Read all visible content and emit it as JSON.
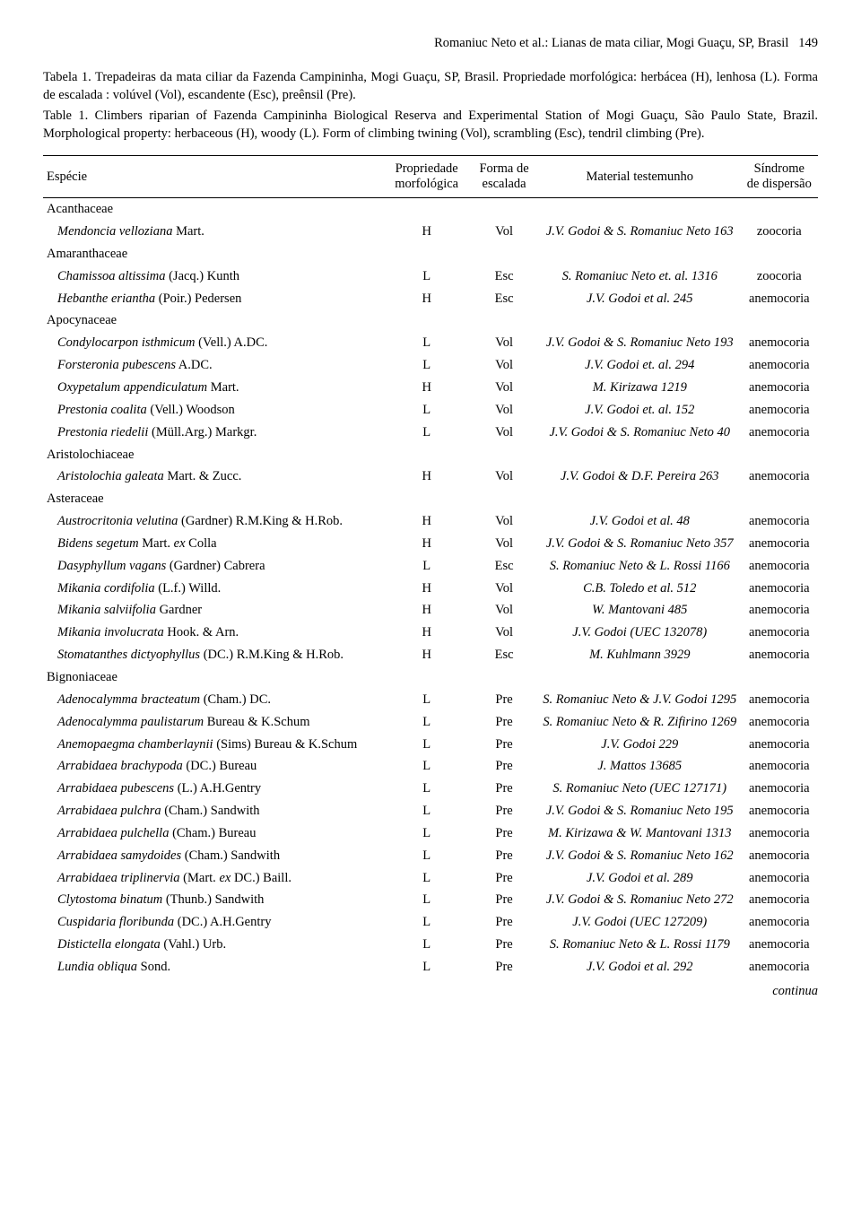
{
  "running_head": "Romaniuc Neto et al.: Lianas de mata ciliar, Mogi Guaçu, SP, Brasil",
  "page_number": "149",
  "caption_pt": "Tabela 1. Trepadeiras da mata ciliar da Fazenda Campininha, Mogi Guaçu, SP, Brasil. Propriedade morfológica: herbácea (H), lenhosa (L). Forma de escalada : volúvel (Vol), escandente (Esc), preênsil (Pre).",
  "caption_en": "Table 1. Climbers riparian of Fazenda Campininha Biological Reserva and Experimental Station of Mogi Guaçu, São Paulo State, Brazil. Morphological property: herbaceous (H), woody (L). Form of climbing twining (Vol), scrambling (Esc), tendril climbing (Pre).",
  "columns": {
    "especie": "Espécie",
    "prop": "Propriedade\nmorfológica",
    "forma": "Forma de\nescalada",
    "material": "Material testemunho",
    "sindrome": "Síndrome\nde dispersão"
  },
  "rows": [
    {
      "type": "family",
      "name": "Acanthaceae"
    },
    {
      "type": "sp",
      "name": "Mendoncia velloziana",
      "auth": " Mart.",
      "pm": "H",
      "fe": "Vol",
      "mt": "J.V. Godoi & S. Romaniuc Neto 163",
      "sd": "zoocoria"
    },
    {
      "type": "family",
      "name": "Amaranthaceae"
    },
    {
      "type": "sp",
      "name": "Chamissoa altissima",
      "auth": " (Jacq.) Kunth",
      "pm": "L",
      "fe": "Esc",
      "mt": "S. Romaniuc Neto et. al. 1316",
      "sd": "zoocoria"
    },
    {
      "type": "sp",
      "name": "Hebanthe eriantha",
      "auth": " (Poir.) Pedersen",
      "pm": "H",
      "fe": "Esc",
      "mt": "J.V. Godoi et al. 245",
      "sd": "anemocoria"
    },
    {
      "type": "family",
      "name": "Apocynaceae"
    },
    {
      "type": "sp",
      "name": "Condylocarpon isthmicum",
      "auth": " (Vell.) A.DC.",
      "pm": "L",
      "fe": "Vol",
      "mt": "J.V. Godoi & S. Romaniuc Neto 193",
      "sd": "anemocoria"
    },
    {
      "type": "sp",
      "name": "Forsteronia pubescens",
      "auth": " A.DC.",
      "pm": "L",
      "fe": "Vol",
      "mt": "J.V. Godoi et. al. 294",
      "sd": "anemocoria"
    },
    {
      "type": "sp",
      "name": "Oxypetalum appendiculatum",
      "auth": " Mart.",
      "pm": "H",
      "fe": "Vol",
      "mt": "M. Kirizawa 1219",
      "sd": "anemocoria"
    },
    {
      "type": "sp",
      "name": "Prestonia coalita",
      "auth": " (Vell.) Woodson",
      "pm": "L",
      "fe": "Vol",
      "mt": "J.V. Godoi et. al. 152",
      "sd": "anemocoria"
    },
    {
      "type": "sp",
      "name": "Prestonia riedelii",
      "auth": " (Müll.Arg.) Markgr.",
      "pm": "L",
      "fe": "Vol",
      "mt": "J.V. Godoi & S. Romaniuc Neto 40",
      "sd": "anemocoria"
    },
    {
      "type": "family",
      "name": "Aristolochiaceae"
    },
    {
      "type": "sp",
      "name": "Aristolochia galeata",
      "auth": " Mart. & Zucc.",
      "pm": "H",
      "fe": "Vol",
      "mt": "J.V. Godoi & D.F. Pereira 263",
      "sd": "anemocoria"
    },
    {
      "type": "family",
      "name": "Asteraceae"
    },
    {
      "type": "sp",
      "name": "Austrocritonia velutina",
      "auth": " (Gardner) R.M.King & H.Rob.",
      "pm": "H",
      "fe": "Vol",
      "mt": "J.V. Godoi et al. 48",
      "sd": "anemocoria"
    },
    {
      "type": "sp",
      "name": "Bidens segetum",
      "auth": " Mart. ",
      "name2": "ex",
      "auth2": " Colla",
      "pm": "H",
      "fe": "Vol",
      "mt": "J.V. Godoi & S. Romaniuc Neto 357",
      "sd": "anemocoria"
    },
    {
      "type": "sp",
      "name": "Dasyphyllum vagans",
      "auth": " (Gardner) Cabrera",
      "pm": "L",
      "fe": "Esc",
      "mt": "S. Romaniuc Neto & L. Rossi 1166",
      "sd": "anemocoria"
    },
    {
      "type": "sp",
      "name": "Mikania cordifolia",
      "auth": " (L.f.) Willd.",
      "pm": "H",
      "fe": "Vol",
      "mt": "C.B. Toledo et al. 512",
      "sd": "anemocoria"
    },
    {
      "type": "sp",
      "name": "Mikania salviifolia",
      "auth": " Gardner",
      "pm": "H",
      "fe": "Vol",
      "mt": "W. Mantovani 485",
      "sd": "anemocoria"
    },
    {
      "type": "sp",
      "name": "Mikania involucrata",
      "auth": " Hook. & Arn.",
      "pm": "H",
      "fe": "Vol",
      "mt": "J.V. Godoi (UEC 132078)",
      "sd": "anemocoria"
    },
    {
      "type": "sp",
      "name": "Stomatanthes dictyophyllus",
      "auth": " (DC.) R.M.King & H.Rob.",
      "pm": "H",
      "fe": "Esc",
      "mt": "M. Kuhlmann 3929",
      "sd": "anemocoria"
    },
    {
      "type": "family",
      "name": "Bignoniaceae"
    },
    {
      "type": "sp",
      "name": "Adenocalymma bracteatum",
      "auth": " (Cham.) DC.",
      "pm": "L",
      "fe": "Pre",
      "mt": "S. Romaniuc Neto & J.V. Godoi 1295",
      "sd": "anemocoria"
    },
    {
      "type": "sp",
      "name": "Adenocalymma paulistarum",
      "auth": " Bureau & K.Schum",
      "pm": "L",
      "fe": "Pre",
      "mt": "S. Romaniuc Neto & R. Zifirino 1269",
      "sd": "anemocoria"
    },
    {
      "type": "sp",
      "name": "Anemopaegma chamberlaynii",
      "auth": " (Sims) Bureau & K.Schum",
      "pm": "L",
      "fe": "Pre",
      "mt": "J.V. Godoi 229",
      "sd": "anemocoria"
    },
    {
      "type": "sp",
      "name": "Arrabidaea brachypoda",
      "auth": " (DC.) Bureau",
      "pm": "L",
      "fe": "Pre",
      "mt": "J. Mattos 13685",
      "sd": "anemocoria"
    },
    {
      "type": "sp",
      "name": "Arrabidaea pubescens",
      "auth": " (L.) A.H.Gentry",
      "pm": "L",
      "fe": "Pre",
      "mt": "S. Romaniuc Neto (UEC 127171)",
      "sd": "anemocoria"
    },
    {
      "type": "sp",
      "name": "Arrabidaea pulchra",
      "auth": " (Cham.) Sandwith",
      "pm": "L",
      "fe": "Pre",
      "mt": "J.V. Godoi & S. Romaniuc Neto 195",
      "sd": "anemocoria"
    },
    {
      "type": "sp",
      "name": "Arrabidaea pulchella",
      "auth": " (Cham.) Bureau",
      "pm": "L",
      "fe": "Pre",
      "mt": "M. Kirizawa & W. Mantovani 1313",
      "sd": "anemocoria"
    },
    {
      "type": "sp",
      "name": "Arrabidaea samydoides",
      "auth": " (Cham.) Sandwith",
      "pm": "L",
      "fe": "Pre",
      "mt": "J.V. Godoi & S. Romaniuc Neto 162",
      "sd": "anemocoria"
    },
    {
      "type": "sp",
      "name": "Arrabidaea triplinervia",
      "auth": " (Mart. ",
      "name2": "ex",
      "auth2": " DC.) Baill.",
      "pm": "L",
      "fe": "Pre",
      "mt": "J.V. Godoi et al. 289",
      "sd": "anemocoria"
    },
    {
      "type": "sp",
      "name": "Clytostoma binatum",
      "auth": " (Thunb.) Sandwith",
      "pm": "L",
      "fe": "Pre",
      "mt": "J.V. Godoi & S. Romaniuc Neto 272",
      "sd": "anemocoria"
    },
    {
      "type": "sp",
      "name": "Cuspidaria floribunda",
      "auth": " (DC.) A.H.Gentry",
      "pm": "L",
      "fe": "Pre",
      "mt": "J.V. Godoi (UEC 127209)",
      "sd": "anemocoria"
    },
    {
      "type": "sp",
      "name": "Distictella elongata",
      "auth": " (Vahl.) Urb.",
      "pm": "L",
      "fe": "Pre",
      "mt": "S. Romaniuc Neto & L. Rossi 1179",
      "sd": "anemocoria"
    },
    {
      "type": "sp",
      "name": "Lundia obliqua",
      "auth": " Sond.",
      "pm": "L",
      "fe": "Pre",
      "mt": "J.V. Godoi et al. 292",
      "sd": "anemocoria"
    }
  ],
  "continua": "continua"
}
